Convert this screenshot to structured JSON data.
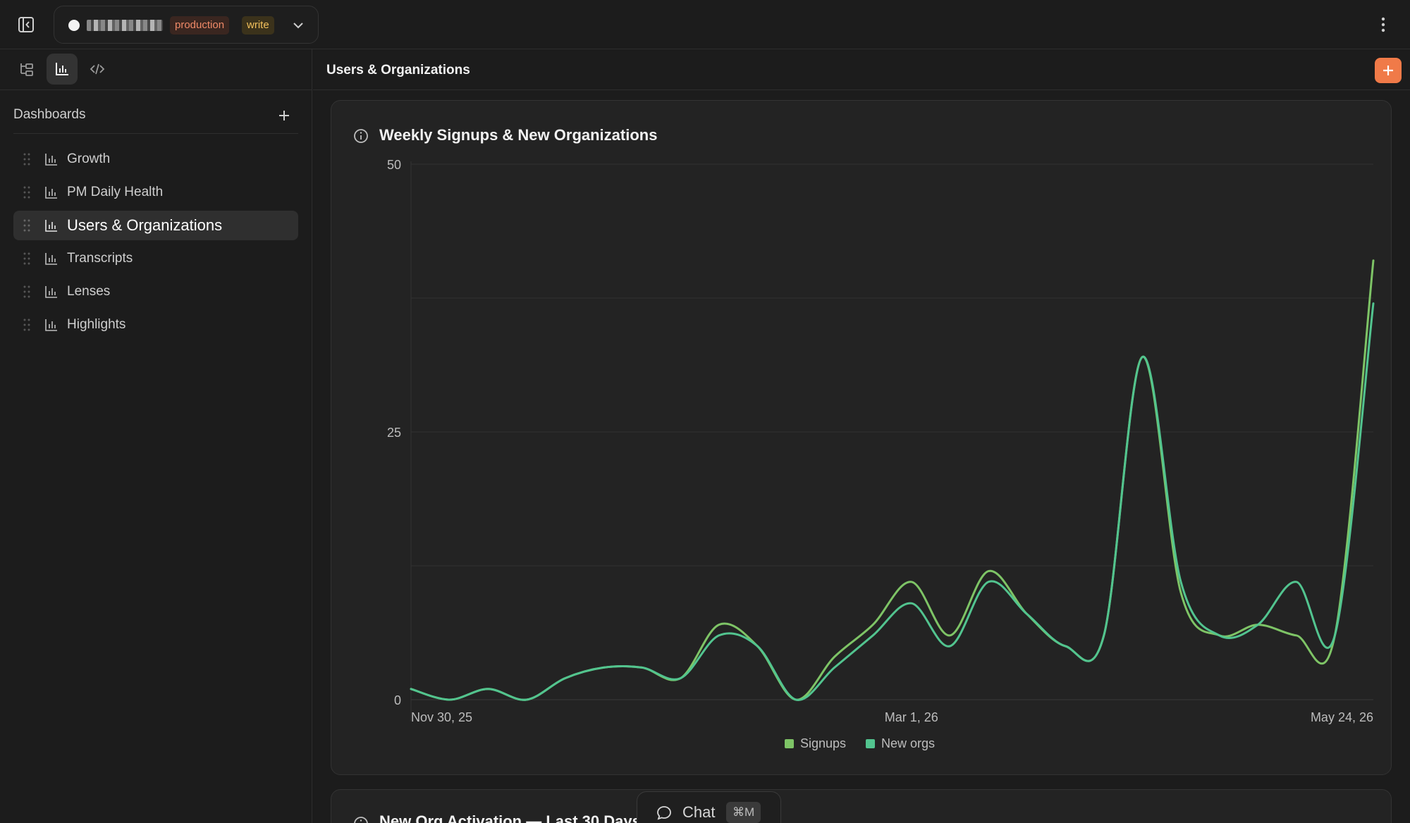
{
  "header": {
    "connection_badge_env": "production",
    "connection_badge_mode": "write"
  },
  "sidebar": {
    "section_title": "Dashboards",
    "items": [
      {
        "label": "Growth",
        "active": false
      },
      {
        "label": "PM Daily Health",
        "active": false
      },
      {
        "label": "Users & Organizations",
        "active": true
      },
      {
        "label": "Transcripts",
        "active": false
      },
      {
        "label": "Lenses",
        "active": false
      },
      {
        "label": "Highlights",
        "active": false
      }
    ]
  },
  "main": {
    "page_title": "Users & Organizations",
    "card_title": "Weekly Signups & New Organizations",
    "next_card_title": "New Org Activation — Last 30 Days"
  },
  "chat": {
    "label": "Chat",
    "shortcut": "⌘M"
  },
  "colors": {
    "accent": "#f07a48",
    "signups": "#7ec466",
    "new_orgs": "#52c48f"
  },
  "chart_data": {
    "type": "line",
    "title": "Weekly Signups & New Organizations",
    "x": [
      "Nov 30, 25",
      "Dec 7, 25",
      "Dec 14, 25",
      "Dec 21, 25",
      "Dec 28, 25",
      "Jan 4, 26",
      "Jan 11, 26",
      "Jan 18, 26",
      "Jan 25, 26",
      "Feb 1, 26",
      "Feb 8, 26",
      "Feb 15, 26",
      "Feb 22, 26",
      "Mar 1, 26",
      "Mar 8, 26",
      "Mar 15, 26",
      "Mar 22, 26",
      "Mar 29, 26",
      "Apr 5, 26",
      "Apr 12, 26",
      "Apr 19, 26",
      "Apr 26, 26",
      "May 3, 26",
      "May 10, 26",
      "May 17, 26",
      "May 24, 26"
    ],
    "x_tick_labels": [
      "Nov 30, 25",
      "Mar 1, 26",
      "May 24, 26"
    ],
    "ylim": [
      0,
      50
    ],
    "y_ticks": [
      0,
      25,
      50
    ],
    "grid": true,
    "legend_position": "bottom-center",
    "series": [
      {
        "name": "Signups",
        "values": [
          1,
          0,
          1,
          0,
          2,
          3,
          3,
          2,
          7,
          5,
          0,
          4,
          7,
          11,
          6,
          12,
          8,
          5,
          6,
          32,
          10,
          6,
          7,
          6,
          6,
          41
        ]
      },
      {
        "name": "New orgs",
        "values": [
          1,
          0,
          1,
          0,
          2,
          3,
          3,
          2,
          6,
          5,
          0,
          3,
          6,
          9,
          5,
          11,
          8,
          5,
          6,
          32,
          11,
          6,
          7,
          11,
          6,
          37
        ]
      }
    ]
  }
}
